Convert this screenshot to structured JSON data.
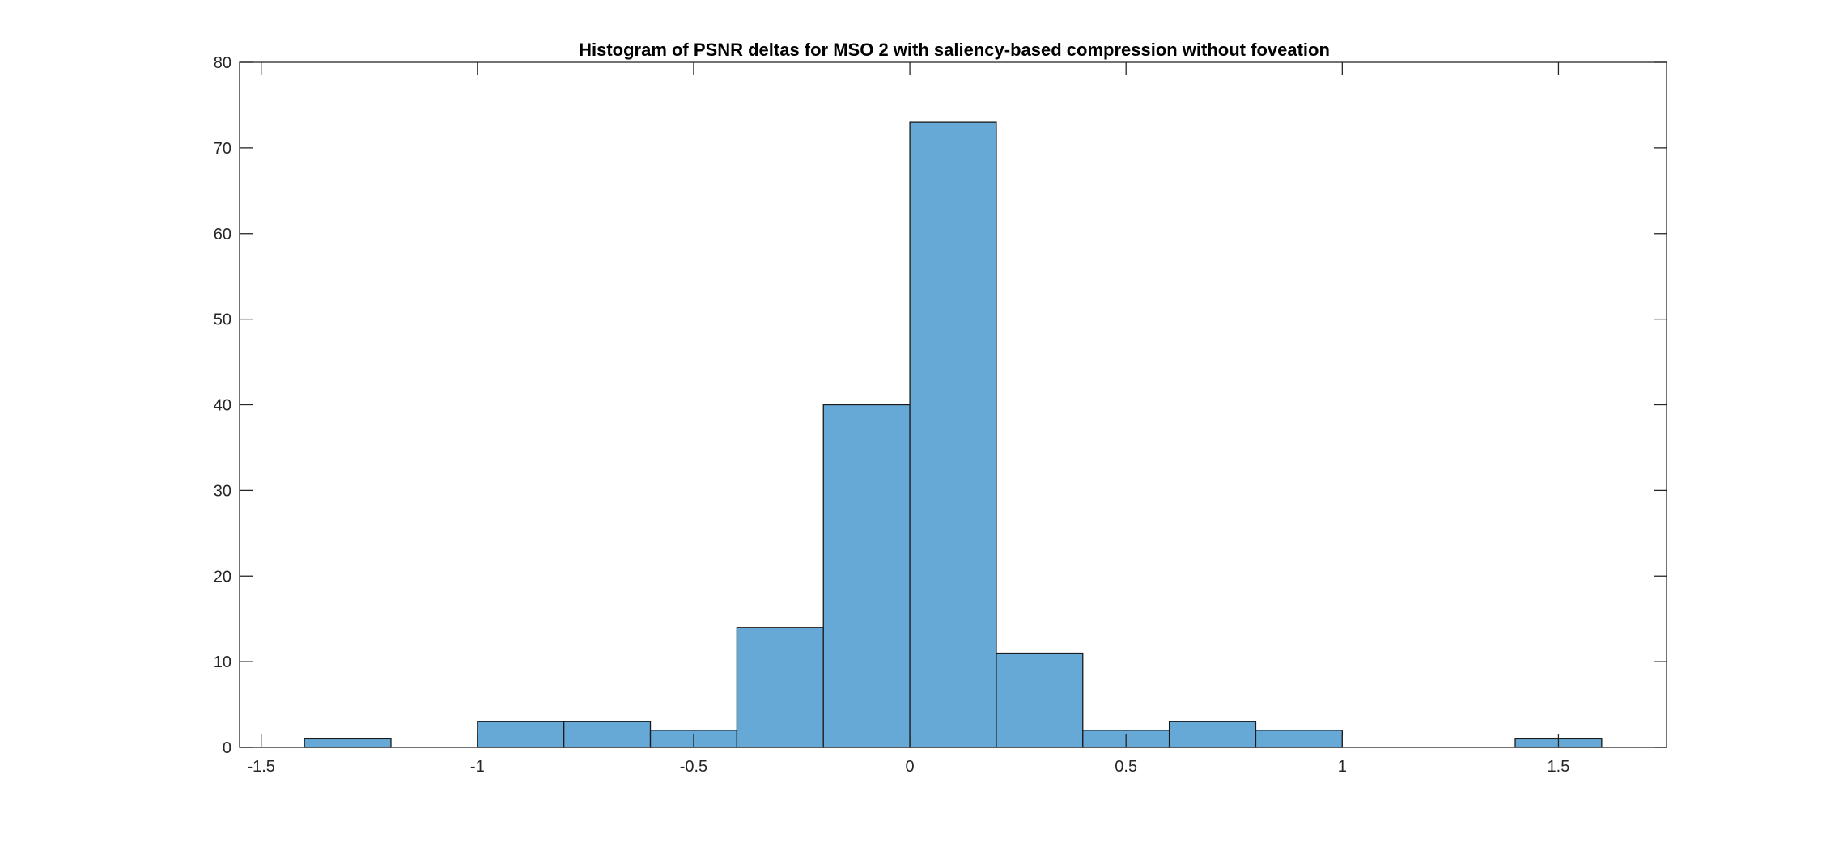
{
  "chart_data": {
    "type": "bar",
    "title": "Histogram of PSNR deltas for MSO 2 with saliency-based compression without foveation",
    "xlabel": "",
    "ylabel": "",
    "xlim": [
      -1.55,
      1.75
    ],
    "ylim": [
      0,
      80
    ],
    "bin_edges": [
      -1.4,
      -1.2,
      -1.0,
      -0.8,
      -0.6,
      -0.4,
      -0.2,
      0.0,
      0.2,
      0.4,
      0.6,
      0.8,
      1.0,
      1.2,
      1.4,
      1.6
    ],
    "values": [
      1,
      0,
      3,
      3,
      2,
      14,
      40,
      73,
      11,
      2,
      3,
      2,
      0,
      0,
      1
    ],
    "x_ticks": [
      -1.5,
      -1,
      -0.5,
      0,
      0.5,
      1,
      1.5
    ],
    "x_tick_labels": [
      "-1.5",
      "-1",
      "-0.5",
      "0",
      "0.5",
      "1",
      "1.5"
    ],
    "y_ticks": [
      0,
      10,
      20,
      30,
      40,
      50,
      60,
      70,
      80
    ],
    "y_tick_labels": [
      "0",
      "10",
      "20",
      "30",
      "40",
      "50",
      "60",
      "70",
      "80"
    ],
    "grid": false,
    "legend": "none",
    "colors": {
      "bar_fill": "#66a9d6",
      "bar_edge": "#1a1a1a",
      "axes": "#262626",
      "text": "#262626",
      "background": "#ffffff"
    }
  }
}
